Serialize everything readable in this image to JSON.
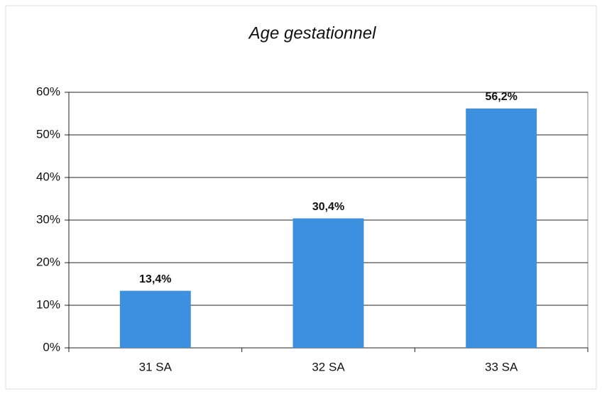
{
  "chart_data": {
    "type": "bar",
    "title": "Age gestationnel",
    "categories": [
      "31 SA",
      "32 SA",
      "33 SA"
    ],
    "values": [
      13.4,
      30.4,
      56.2
    ],
    "value_labels": [
      "13,4%",
      "30,4%",
      "56,2%"
    ],
    "color": "#3d8fe0",
    "ylim": [
      0,
      60
    ],
    "yticks": [
      {
        "value": 0,
        "label": "0%"
      },
      {
        "value": 10,
        "label": "10%"
      },
      {
        "value": 20,
        "label": "20%"
      },
      {
        "value": 30,
        "label": "30%"
      },
      {
        "value": 40,
        "label": "40%"
      },
      {
        "value": 50,
        "label": "50%"
      },
      {
        "value": 60,
        "label": "60%"
      }
    ],
    "grid": true
  }
}
